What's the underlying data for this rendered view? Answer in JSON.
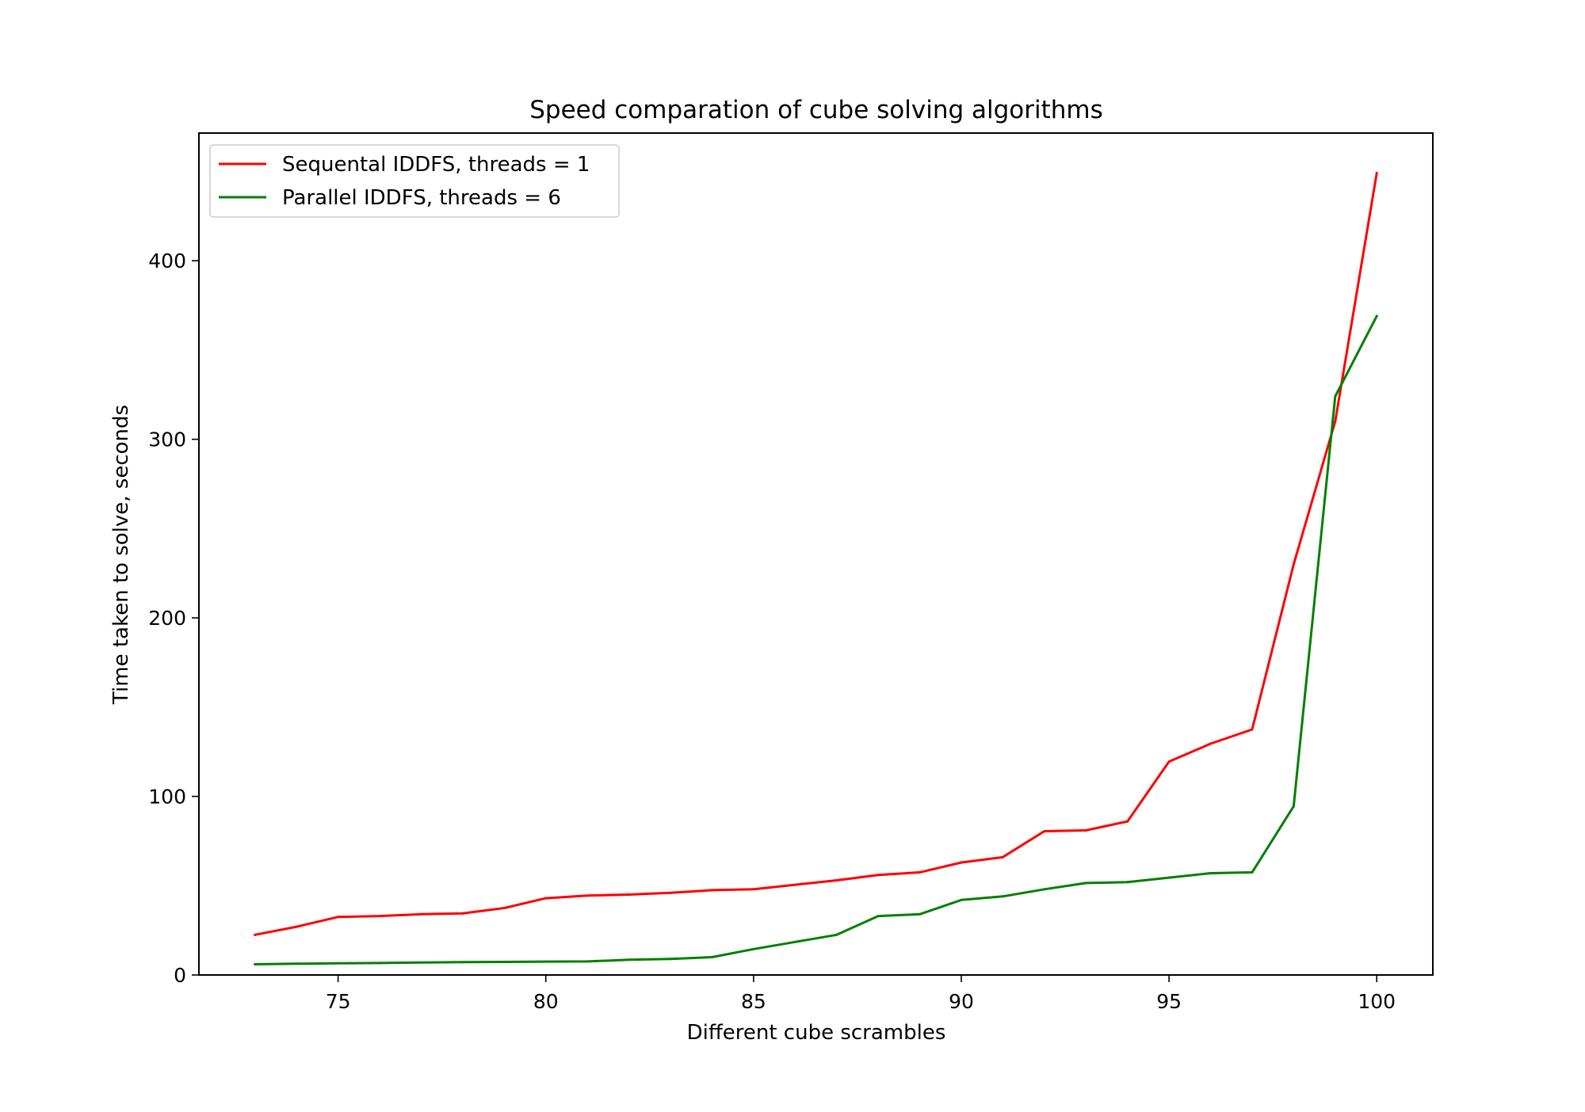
{
  "chart_data": {
    "type": "line",
    "title": "Speed comparation of cube solving algorithms",
    "xlabel": "Different cube scrambles",
    "ylabel": "Time taken to solve, seconds",
    "xlim": [
      71.65,
      101.35
    ],
    "ylim": [
      0,
      471.5
    ],
    "xticks": [
      75,
      80,
      85,
      90,
      95,
      100
    ],
    "yticks": [
      0,
      100,
      200,
      300,
      400
    ],
    "grid": false,
    "legend_position": "upper-left",
    "x": [
      73,
      74,
      75,
      76,
      77,
      78,
      79,
      80,
      81,
      82,
      83,
      84,
      85,
      86,
      87,
      88,
      89,
      90,
      91,
      92,
      93,
      94,
      95,
      96,
      97,
      98,
      99,
      100
    ],
    "series": [
      {
        "name": "Sequental IDDFS, threads = 1",
        "color": "#ff0000",
        "values": [
          22.5,
          27,
          32.5,
          33,
          34,
          34.5,
          37.5,
          43,
          44.5,
          45,
          46,
          47.5,
          48,
          50.5,
          53,
          56,
          57.5,
          63,
          66,
          80.5,
          81,
          86,
          119.5,
          129.5,
          137.5,
          230,
          310,
          449
        ]
      },
      {
        "name": "Parallel IDDFS, threads = 6",
        "color": "#008000",
        "values": [
          6,
          6.3,
          6.5,
          6.7,
          7,
          7.2,
          7.3,
          7.5,
          7.6,
          8.5,
          9,
          10,
          14.5,
          18.5,
          22.5,
          33,
          34,
          42,
          44,
          48,
          51.5,
          52,
          54.5,
          57,
          57.5,
          94.5,
          324,
          369
        ]
      }
    ]
  }
}
